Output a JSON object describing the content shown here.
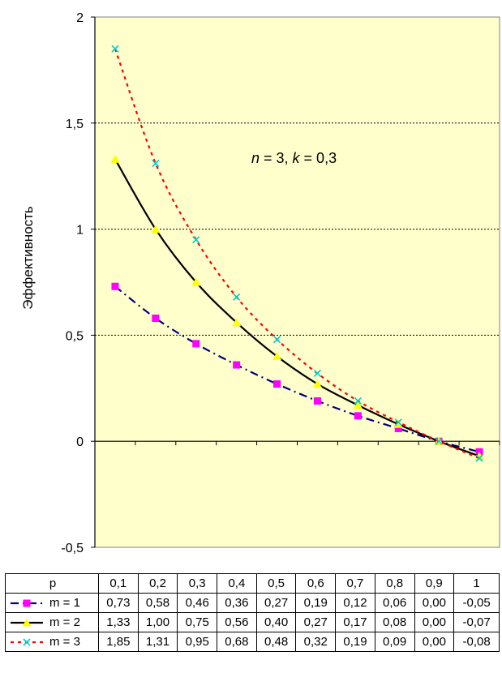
{
  "chart_data": {
    "type": "line",
    "ylabel": "Эффективность",
    "annotation": {
      "n_var": "n",
      "n_val": " = 3, ",
      "k_var": "k",
      "k_val": " = 0,3"
    },
    "ylim": [
      -0.5,
      2
    ],
    "yticks": [
      "2",
      "1,5",
      "1",
      "0,5",
      "0",
      "-0,5"
    ],
    "ytick_values": [
      2,
      1.5,
      1,
      0.5,
      0,
      -0.5
    ],
    "grid": "horizontal-dotted",
    "plot_background": "#FFFFCC",
    "x_header": "p",
    "x": [
      "0,1",
      "0,2",
      "0,3",
      "0,4",
      "0,5",
      "0,6",
      "0,7",
      "0,8",
      "0,9",
      "1"
    ],
    "x_values": [
      0.1,
      0.2,
      0.3,
      0.4,
      0.5,
      0.6,
      0.7,
      0.8,
      0.9,
      1.0
    ],
    "series": [
      {
        "name": "m = 1",
        "color": "#000080",
        "marker_color": "#FF00FF",
        "marker": "square",
        "dash": "dash-dot",
        "values": [
          0.73,
          0.58,
          0.46,
          0.36,
          0.27,
          0.19,
          0.12,
          0.06,
          0.0,
          -0.05
        ],
        "labels": [
          "0,73",
          "0,58",
          "0,46",
          "0,36",
          "0,27",
          "0,19",
          "0,12",
          "0,06",
          "0,00",
          "-0,05"
        ]
      },
      {
        "name": "m = 2",
        "color": "#000000",
        "marker_color": "#FFFF00",
        "marker": "triangle",
        "dash": "solid",
        "values": [
          1.33,
          1.0,
          0.75,
          0.56,
          0.4,
          0.27,
          0.17,
          0.08,
          0.0,
          -0.07
        ],
        "labels": [
          "1,33",
          "1,00",
          "0,75",
          "0,56",
          "0,40",
          "0,27",
          "0,17",
          "0,08",
          "0,00",
          "-0,07"
        ]
      },
      {
        "name": "m = 3",
        "color": "#FF0000",
        "marker_color": "#00CCCC",
        "marker": "x",
        "dash": "dotted",
        "values": [
          1.85,
          1.31,
          0.95,
          0.68,
          0.48,
          0.32,
          0.19,
          0.09,
          0.0,
          -0.08
        ],
        "labels": [
          "1,85",
          "1,31",
          "0,95",
          "0,68",
          "0,48",
          "0,32",
          "0,19",
          "0,09",
          "0,00",
          "-0,08"
        ]
      }
    ]
  }
}
